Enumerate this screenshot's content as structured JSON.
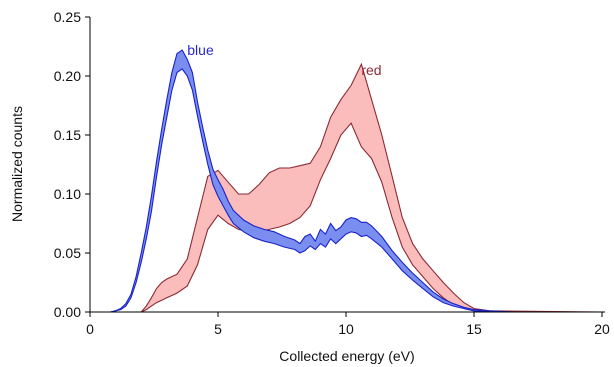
{
  "chart_data": {
    "type": "area",
    "title": "",
    "xlabel": "Collected energy (eV)",
    "ylabel": "Normalized counts",
    "xlim": [
      0,
      20
    ],
    "ylim": [
      0,
      0.25
    ],
    "xticks": [
      0,
      5,
      10,
      15,
      20
    ],
    "xtick_labels": [
      "0",
      "5",
      "10",
      "15",
      "20"
    ],
    "yticks": [
      0,
      0.05,
      0.1,
      0.15,
      0.2,
      0.25
    ],
    "ytick_labels": [
      "0.00",
      "0.05",
      "0.10",
      "0.15",
      "0.20",
      "0.25"
    ],
    "grid": false,
    "legend": "inline labels",
    "series": [
      {
        "name": "blue",
        "fill_color": "#7a8ef0",
        "line_color": "#1a22c8",
        "label_text_color": "#2a2acc",
        "label_at": [
          3.8,
          0.218
        ],
        "x": [
          0,
          0.8,
          1.0,
          1.2,
          1.4,
          1.6,
          1.8,
          2.0,
          2.2,
          2.4,
          2.6,
          2.8,
          3.0,
          3.2,
          3.4,
          3.6,
          3.8,
          4.0,
          4.2,
          4.4,
          4.6,
          4.8,
          5.0,
          5.2,
          5.4,
          5.6,
          6.0,
          6.4,
          6.8,
          7.2,
          7.6,
          8.0,
          8.2,
          8.4,
          8.6,
          8.8,
          9.0,
          9.2,
          9.4,
          9.6,
          9.8,
          10.0,
          10.2,
          10.4,
          10.6,
          10.8,
          11.0,
          11.4,
          11.8,
          12.2,
          12.6,
          13.0,
          13.4,
          13.8,
          14.2,
          14.6,
          15.0,
          15.6,
          16.5,
          20
        ],
        "lower": [
          0,
          0,
          0.001,
          0.002,
          0.005,
          0.012,
          0.025,
          0.042,
          0.062,
          0.085,
          0.115,
          0.142,
          0.165,
          0.188,
          0.203,
          0.206,
          0.2,
          0.188,
          0.166,
          0.145,
          0.125,
          0.108,
          0.098,
          0.09,
          0.082,
          0.075,
          0.068,
          0.063,
          0.06,
          0.058,
          0.055,
          0.053,
          0.05,
          0.052,
          0.056,
          0.053,
          0.058,
          0.055,
          0.062,
          0.058,
          0.062,
          0.066,
          0.068,
          0.067,
          0.064,
          0.065,
          0.062,
          0.055,
          0.045,
          0.035,
          0.027,
          0.02,
          0.013,
          0.008,
          0.005,
          0.003,
          0.001,
          0.0005,
          0,
          0
        ],
        "upper": [
          0,
          0,
          0.001,
          0.003,
          0.007,
          0.015,
          0.03,
          0.05,
          0.072,
          0.098,
          0.128,
          0.155,
          0.18,
          0.203,
          0.219,
          0.222,
          0.214,
          0.203,
          0.178,
          0.157,
          0.137,
          0.121,
          0.112,
          0.104,
          0.094,
          0.086,
          0.078,
          0.073,
          0.07,
          0.068,
          0.064,
          0.061,
          0.058,
          0.064,
          0.066,
          0.06,
          0.07,
          0.066,
          0.075,
          0.069,
          0.072,
          0.078,
          0.08,
          0.079,
          0.076,
          0.076,
          0.073,
          0.064,
          0.052,
          0.042,
          0.033,
          0.025,
          0.017,
          0.011,
          0.007,
          0.004,
          0.002,
          0.001,
          0,
          0
        ]
      },
      {
        "name": "red",
        "fill_color": "#fbbcbc",
        "line_color": "#8b2a35",
        "label_text_color": "#8b2a35",
        "label_at": [
          10.6,
          0.201
        ],
        "x": [
          0,
          2.0,
          2.2,
          2.4,
          2.6,
          2.8,
          3.0,
          3.4,
          3.8,
          4.2,
          4.6,
          5.0,
          5.4,
          5.8,
          6.2,
          6.6,
          7.0,
          7.4,
          7.8,
          8.2,
          8.6,
          9.0,
          9.4,
          9.8,
          10.2,
          10.6,
          11.0,
          11.4,
          11.8,
          12.2,
          12.6,
          13.0,
          13.4,
          13.8,
          14.2,
          14.6,
          15.0,
          15.6,
          20
        ],
        "lower": [
          0,
          0,
          0.002,
          0.005,
          0.008,
          0.01,
          0.012,
          0.016,
          0.022,
          0.04,
          0.07,
          0.082,
          0.075,
          0.07,
          0.068,
          0.068,
          0.07,
          0.072,
          0.075,
          0.08,
          0.09,
          0.112,
          0.13,
          0.15,
          0.16,
          0.14,
          0.13,
          0.11,
          0.08,
          0.055,
          0.04,
          0.03,
          0.02,
          0.012,
          0.006,
          0.003,
          0.001,
          0,
          0
        ],
        "upper": [
          0,
          0,
          0.005,
          0.012,
          0.02,
          0.025,
          0.028,
          0.032,
          0.045,
          0.08,
          0.115,
          0.12,
          0.11,
          0.1,
          0.1,
          0.108,
          0.118,
          0.122,
          0.122,
          0.124,
          0.126,
          0.14,
          0.165,
          0.18,
          0.192,
          0.21,
          0.18,
          0.15,
          0.115,
          0.08,
          0.058,
          0.045,
          0.035,
          0.025,
          0.016,
          0.008,
          0.003,
          0.001,
          0
        ]
      }
    ]
  }
}
